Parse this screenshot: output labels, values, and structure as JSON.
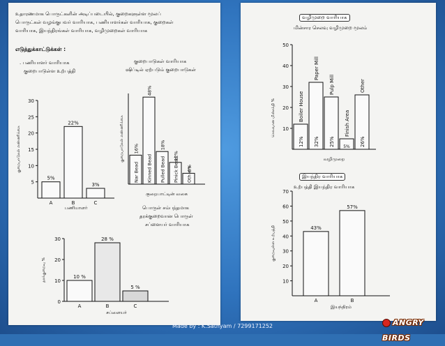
{
  "left_page": {
    "intro_lines": [
      "உதாரணமாக பொருட்களின் அடிப்படையில், குறைகளுள்ள மூலப்",
      "பொருட்கள் வழங்குபவர் வாரியாக, பணியாளர்கள் வாரியாக, குறைகள்",
      "வாரியாக, இயந்திரங்கள் வாரியாக, வழிமுறைகள் வாரியாக"
    ],
    "examples_label": "எடுத்துக்காட்டுக்கள் :",
    "chart1_caption_lines": [
      ". பணியாளர் வாரியாக",
      "குறைபாடுள்ள உற்பத்தி"
    ],
    "chart2_caption_lines": [
      "குறைபாடுகள் வாரியாக",
      "ஷிப்டில் ஏற்படும் குறைபாடுகள்"
    ],
    "chart3_caption_lines": [
      "பொருள் சம்பந்தமாக",
      "தரக்குறைவான பொருள்",
      "சப்ளையர் வாரியாக"
    ]
  },
  "right_page": {
    "chart4_title": "வழிமுறை வாரியாக",
    "chart4_subtitle": "மின்சார செலவு வழிமுறை மூலம்",
    "chart5_title": "இயந்திர வாரியாக",
    "chart5_subtitle": "உற்பத்தி இயந்திர வாரியாக"
  },
  "footer_text": "Made by : K.Sathyam / 7299171252",
  "logo_text": "ANGRY BIRDS",
  "chart_data": [
    {
      "type": "bar",
      "categories": [
        "A",
        "B",
        "C"
      ],
      "values": [
        5,
        22,
        3
      ],
      "data_labels": [
        "5%",
        "22%",
        "3%"
      ],
      "yticks": [
        "5",
        "10",
        "15",
        "20",
        "25",
        "30"
      ],
      "ylim": [
        0,
        30
      ],
      "ylabel": "குறைபாடுகள் எண்ணிக்கை",
      "xlabel": "பணியாளர்"
    },
    {
      "type": "bar",
      "categories": [
        "Nar Bead",
        "Kinned Bead",
        "Pulled Bead",
        "Pinick Bead",
        "Oth ers"
      ],
      "values": [
        16,
        48,
        18,
        12,
        6
      ],
      "data_labels": [
        "16%",
        "48%",
        "18%",
        "12%",
        "6%"
      ],
      "ylabel": "குறைபாடுகள் எண்ணிக்கை",
      "xlabel": "குறைபாட்டின் வகை"
    },
    {
      "type": "bar",
      "categories": [
        "A",
        "B",
        "C"
      ],
      "values": [
        10,
        28,
        5
      ],
      "data_labels": [
        "10 %",
        "28 %",
        "5 %"
      ],
      "yticks": [
        "0",
        "10",
        "20",
        "30"
      ],
      "ylim": [
        0,
        30
      ],
      "ylabel": "தரக்குறைவு %",
      "xlabel": "சப்ளையர்"
    },
    {
      "type": "bar",
      "categories": [
        "Boiler House",
        "Paper Mill",
        "Pulp Mill",
        "Finish Area",
        "Other"
      ],
      "values": [
        12,
        32,
        25,
        5,
        26
      ],
      "data_labels": [
        "12%",
        "32%",
        "25%",
        "5%",
        "26%"
      ],
      "yticks": [
        "10",
        "20",
        "30",
        "40",
        "50"
      ],
      "ylim": [
        0,
        50
      ],
      "ylabel": "செலவான மின்சக்தி %",
      "xlabel": "வழிமுறை"
    },
    {
      "type": "bar",
      "categories": [
        "A",
        "B"
      ],
      "values": [
        43,
        57
      ],
      "data_labels": [
        "43%",
        "57%"
      ],
      "yticks": [
        "10",
        "20",
        "30",
        "40",
        "50",
        "60",
        "70"
      ],
      "ylim": [
        0,
        70
      ],
      "ylabel": "குறைவுள்ள உற்பத்தி",
      "xlabel": "இயந்திரம்"
    }
  ]
}
